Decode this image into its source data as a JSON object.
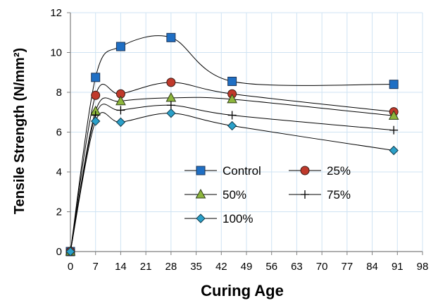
{
  "chart_data": {
    "type": "line",
    "xlabel": "Curing Age",
    "ylabel": "Tensile Strength (N/mm²)",
    "xlim": [
      0,
      98
    ],
    "ylim": [
      0,
      12
    ],
    "x_ticks": [
      "0",
      "7",
      "14",
      "21",
      "28",
      "35",
      "42",
      "49",
      "56",
      "63",
      "70",
      "77",
      "84",
      "91",
      "98"
    ],
    "y_ticks": [
      "0",
      "2",
      "4",
      "6",
      "8",
      "10",
      "12"
    ],
    "grid": "vertical and horizontal",
    "legend_position": "center-bottom",
    "series": [
      {
        "name": "Control",
        "marker": "square",
        "color": "#1f6fc4",
        "x": [
          0,
          7,
          14,
          28,
          45,
          90
        ],
        "values": [
          0,
          8.75,
          10.3,
          10.75,
          8.55,
          8.4
        ]
      },
      {
        "name": "25%",
        "marker": "circle",
        "color": "#c0392b",
        "x": [
          0,
          7,
          14,
          28,
          45,
          90
        ],
        "values": [
          0,
          7.85,
          7.92,
          8.5,
          7.92,
          7.02
        ]
      },
      {
        "name": "50%",
        "marker": "triangle",
        "color": "#8db63c",
        "x": [
          0,
          7,
          14,
          28,
          45,
          90
        ],
        "values": [
          0,
          7.05,
          7.55,
          7.72,
          7.65,
          6.82
        ]
      },
      {
        "name": "75%",
        "marker": "plus",
        "color": "#000000",
        "x": [
          0,
          7,
          14,
          28,
          45,
          90
        ],
        "values": [
          0,
          6.85,
          7.1,
          7.35,
          6.85,
          6.1
        ]
      },
      {
        "name": "100%",
        "marker": "diamond",
        "color": "#2aa0c9",
        "x": [
          0,
          7,
          14,
          28,
          45,
          90
        ],
        "values": [
          0,
          6.55,
          6.5,
          6.95,
          6.32,
          5.08
        ]
      }
    ]
  }
}
